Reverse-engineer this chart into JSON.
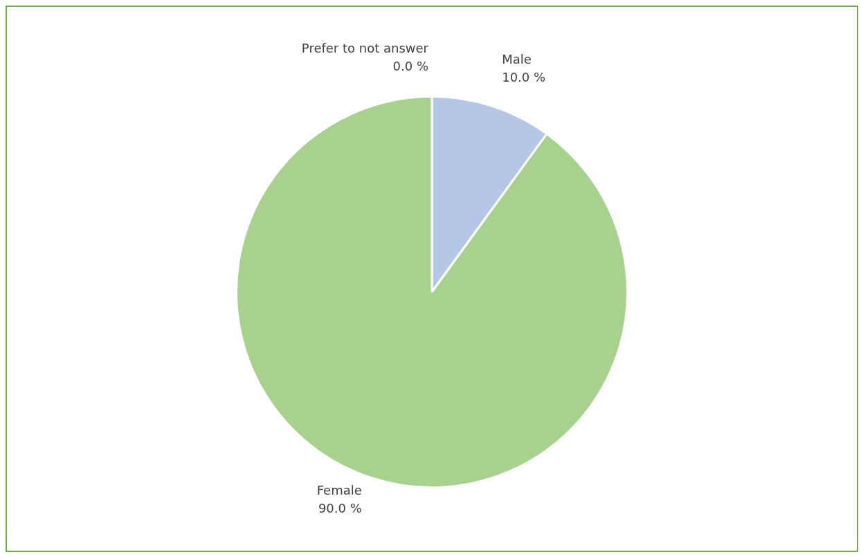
{
  "chart_data": {
    "type": "pie",
    "categories": [
      "Prefer to not answer",
      "Male",
      "Female"
    ],
    "values": [
      0,
      10,
      90
    ],
    "colors": [
      "#ffc000",
      "#b4c7e7",
      "#a9d18e"
    ],
    "value_labels": [
      "0.0 %",
      "10.0 %",
      "90.0 %"
    ],
    "legend": false
  }
}
